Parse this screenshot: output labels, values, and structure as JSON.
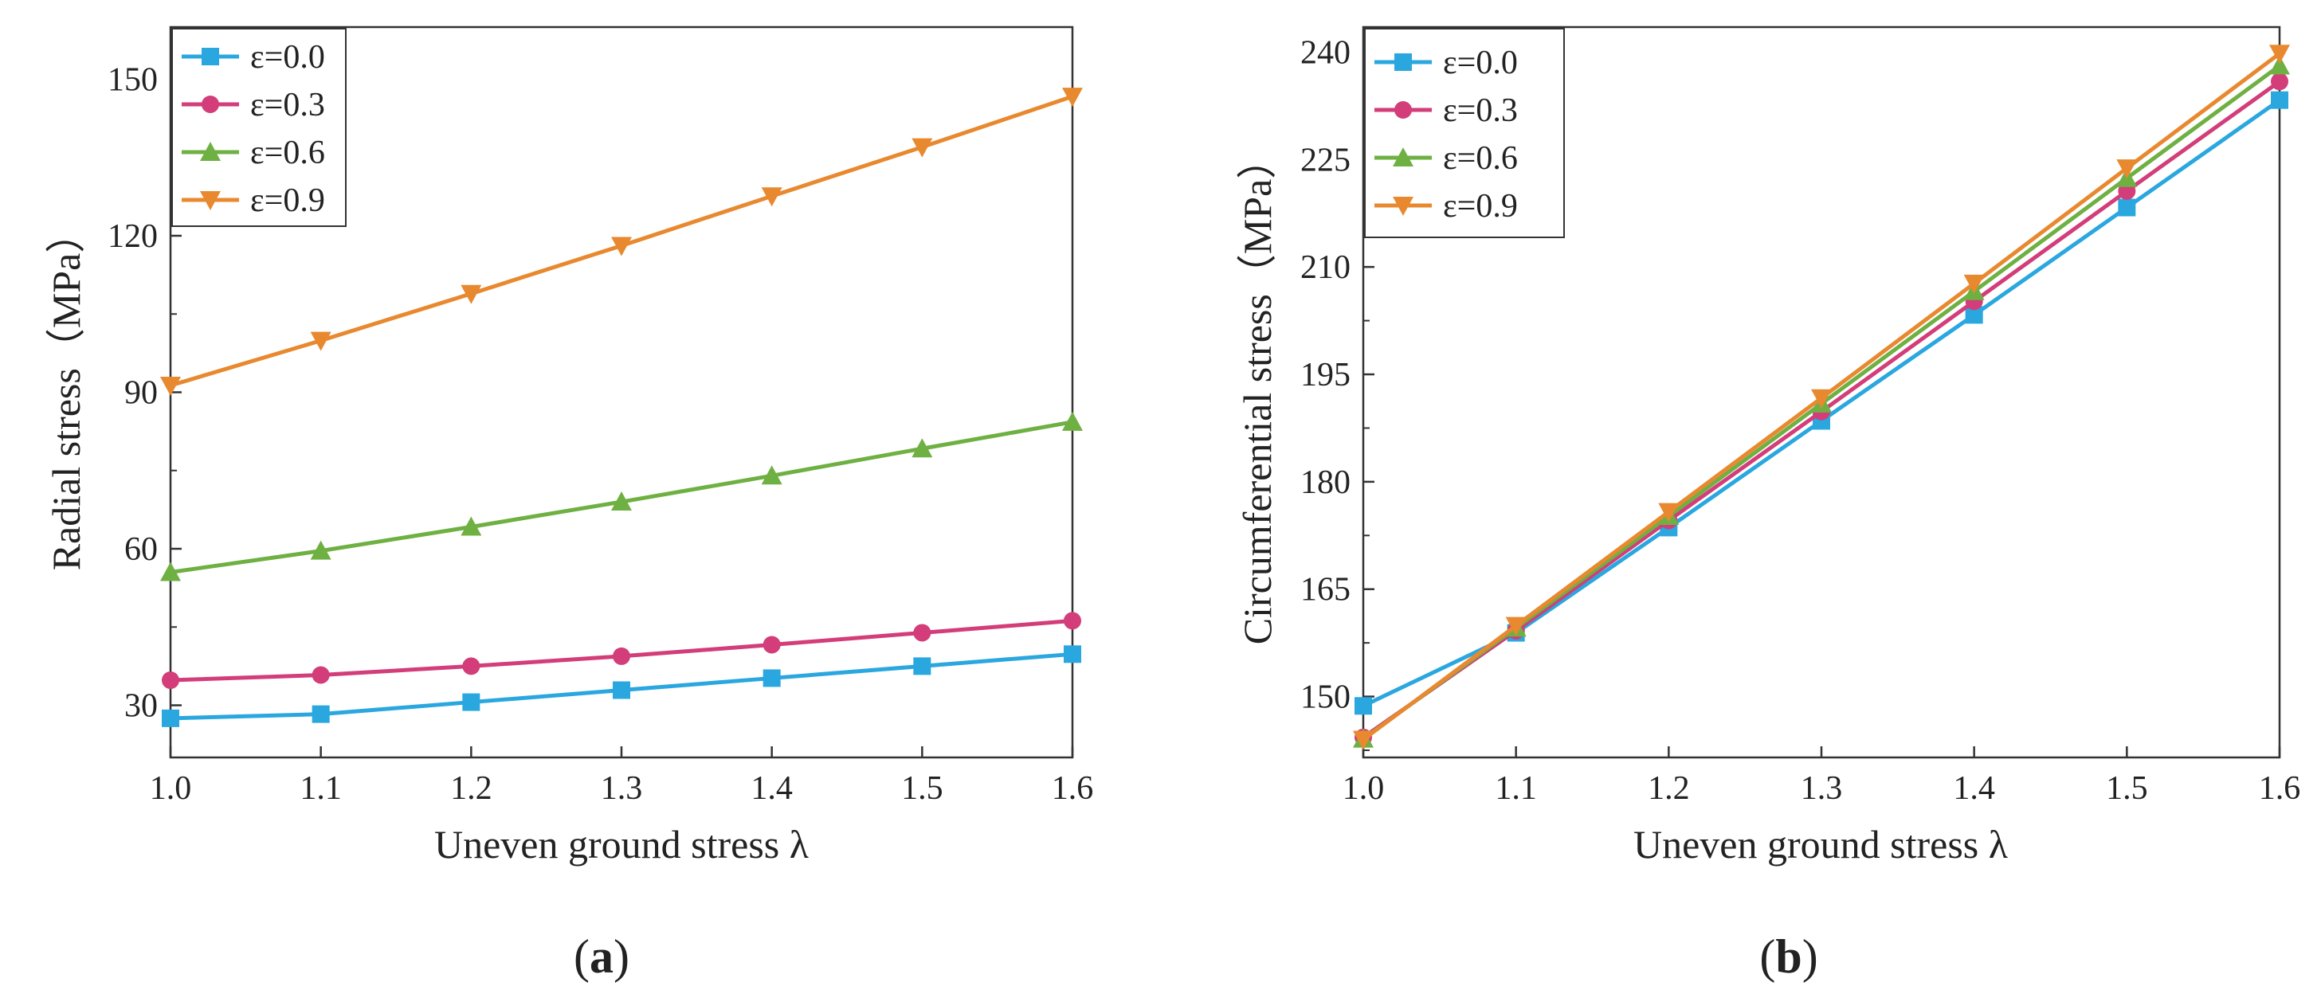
{
  "figure": {
    "colors": {
      "e0.0": "#2aa7df",
      "e0.3": "#d23d7a",
      "e0.6": "#6fb043",
      "e0.9": "#e8892f"
    }
  },
  "chart_data": [
    {
      "type": "line",
      "panel": "a",
      "caption": "a",
      "title": "",
      "xlabel": "Uneven ground stress  λ",
      "ylabel": "Radial stress（MPa）",
      "xlim": [
        1.0,
        1.6
      ],
      "ylim": [
        20,
        160
      ],
      "xticks": [
        1.0,
        1.1,
        1.2,
        1.3,
        1.4,
        1.5,
        1.6
      ],
      "xtick_labels": [
        "1.0",
        "1.1",
        "1.2",
        "1.3",
        "1.4",
        "1.5",
        "1.6"
      ],
      "yticks": [
        30,
        60,
        90,
        120,
        150
      ],
      "ytick_labels": [
        "30",
        "60",
        "90",
        "120",
        "150"
      ],
      "grid": false,
      "legend_position": "top-left",
      "x": [
        1.0,
        1.1,
        1.2,
        1.3,
        1.4,
        1.5,
        1.6
      ],
      "series": [
        {
          "name": "ε=0.0",
          "color_key": "e0.0",
          "marker": "square",
          "values": [
            27.5,
            28.3,
            30.6,
            32.9,
            35.2,
            37.5,
            39.8
          ]
        },
        {
          "name": "ε=0.3",
          "color_key": "e0.3",
          "marker": "circle",
          "values": [
            34.8,
            35.8,
            37.5,
            39.4,
            41.6,
            43.9,
            46.2
          ]
        },
        {
          "name": "ε=0.6",
          "color_key": "e0.6",
          "marker": "triangle-up",
          "values": [
            55.5,
            59.6,
            64.2,
            69.0,
            74.0,
            79.2,
            84.3
          ]
        },
        {
          "name": "ε=0.9",
          "color_key": "e0.9",
          "marker": "triangle-down",
          "values": [
            91.3,
            99.9,
            108.9,
            118.1,
            127.6,
            137.0,
            146.7
          ]
        }
      ]
    },
    {
      "type": "line",
      "panel": "b",
      "caption": "b",
      "title": "",
      "xlabel": "Uneven ground stress  λ",
      "ylabel": "Circumferential stress（MPa）",
      "xlim": [
        1.0,
        1.6
      ],
      "ylim": [
        141.5,
        243.5
      ],
      "xticks": [
        1.0,
        1.1,
        1.2,
        1.3,
        1.4,
        1.5,
        1.6
      ],
      "xtick_labels": [
        "1.0",
        "1.1",
        "1.2",
        "1.3",
        "1.4",
        "1.5",
        "1.6"
      ],
      "yticks": [
        150,
        165,
        180,
        195,
        210,
        225,
        240
      ],
      "ytick_labels": [
        "150",
        "165",
        "180",
        "195",
        "210",
        "225",
        "240"
      ],
      "grid": false,
      "legend_position": "top-left",
      "x": [
        1.0,
        1.1,
        1.2,
        1.3,
        1.4,
        1.5,
        1.6
      ],
      "series": [
        {
          "name": "ε=0.0",
          "color_key": "e0.0",
          "marker": "square",
          "values": [
            148.7,
            158.9,
            173.6,
            188.5,
            203.3,
            218.3,
            233.3
          ]
        },
        {
          "name": "ε=0.3",
          "color_key": "e0.3",
          "marker": "circle",
          "values": [
            144.3,
            159.2,
            174.6,
            189.8,
            205.2,
            220.6,
            235.9
          ]
        },
        {
          "name": "ε=0.6",
          "color_key": "e0.6",
          "marker": "triangle-up",
          "values": [
            144.1,
            159.6,
            175.2,
            190.9,
            206.6,
            222.4,
            238.1
          ]
        },
        {
          "name": "ε=0.9",
          "color_key": "e0.9",
          "marker": "triangle-down",
          "values": [
            144.0,
            159.9,
            175.8,
            191.7,
            207.7,
            223.8,
            239.8
          ]
        }
      ]
    }
  ]
}
